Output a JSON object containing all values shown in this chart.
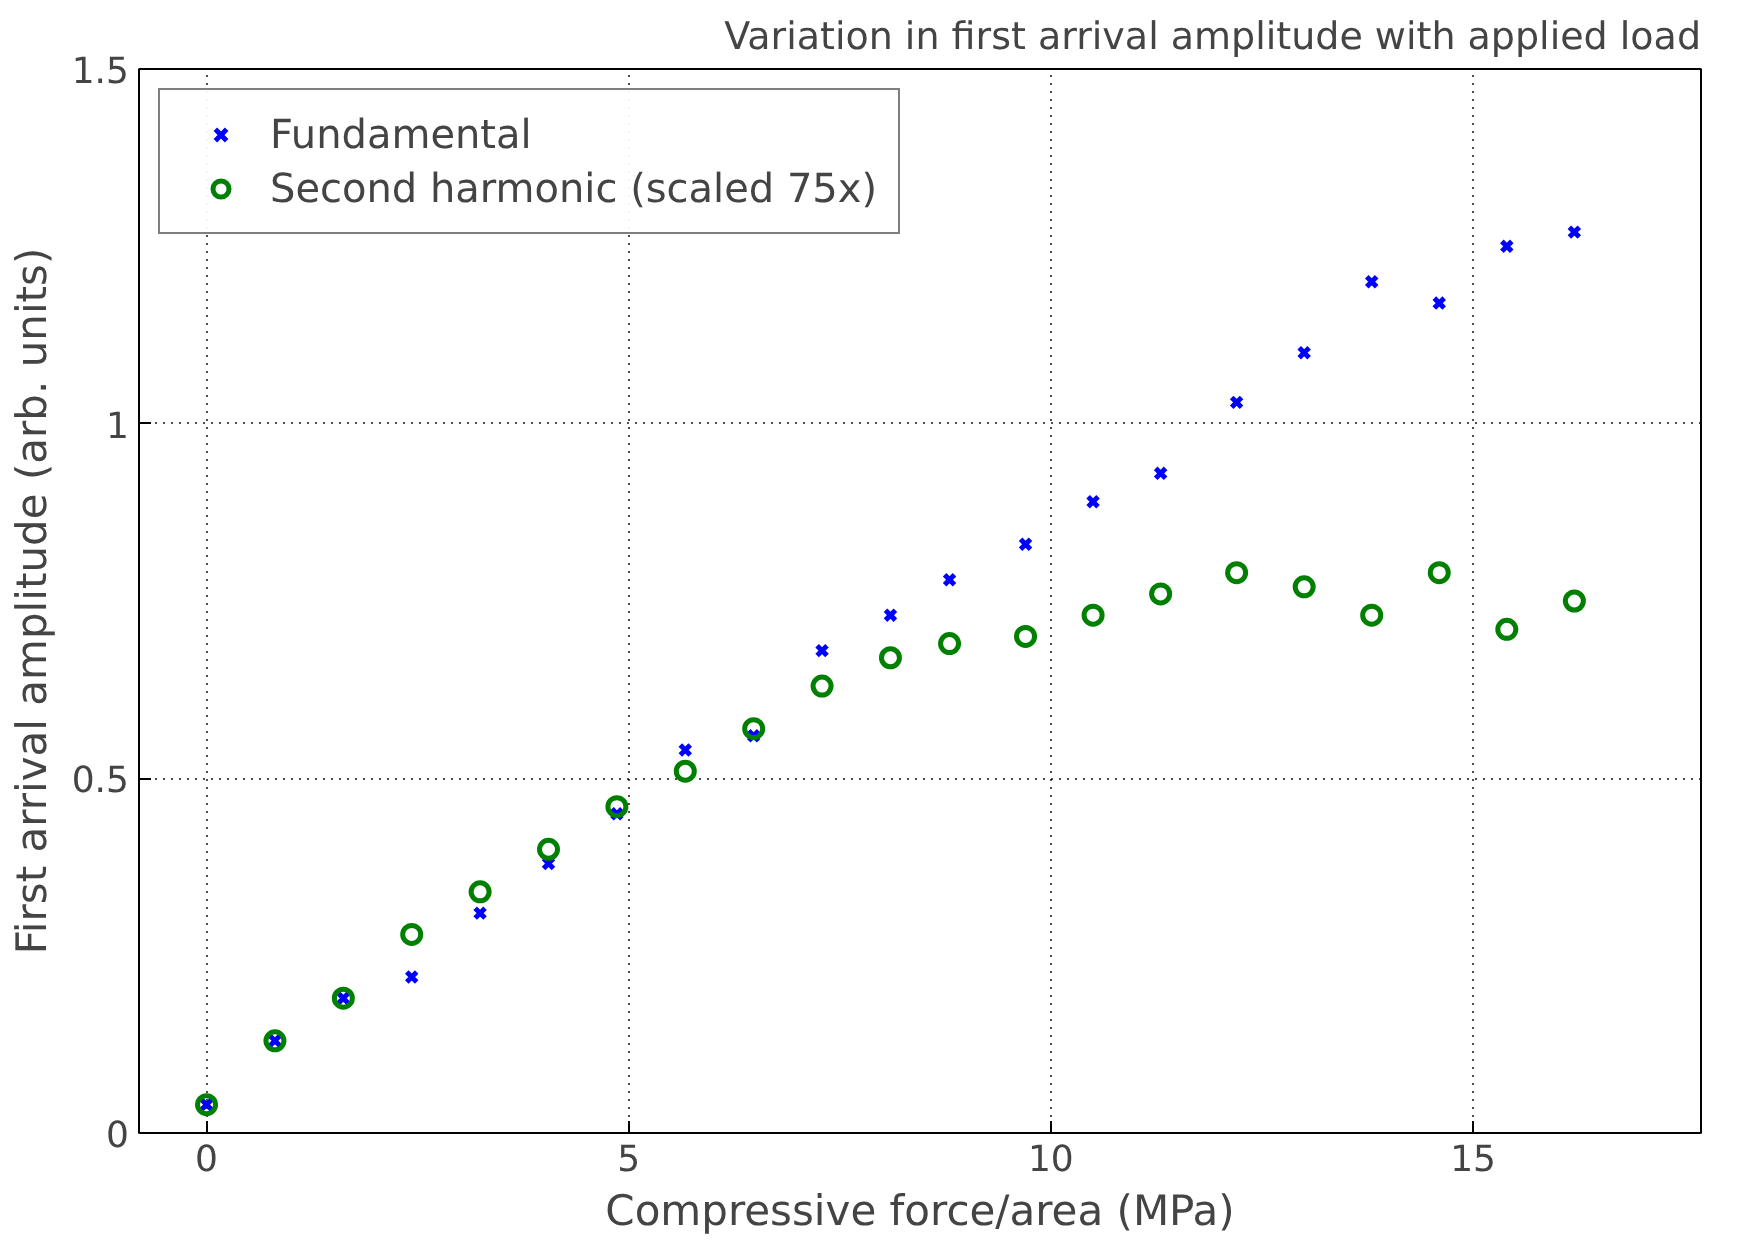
{
  "chart_data": {
    "type": "scatter",
    "title": "Variation in first arrival amplitude with applied load",
    "xlabel": "Compressive force/area (MPa)",
    "ylabel": "First arrival amplitude (arb. units)",
    "x": [
      0,
      0.81,
      1.62,
      2.43,
      3.24,
      4.05,
      4.86,
      5.67,
      6.48,
      7.29,
      8.1,
      8.8,
      9.7,
      10.5,
      11.3,
      12.2,
      13.0,
      13.8,
      14.6,
      15.4,
      16.2
    ],
    "series": [
      {
        "name": "Fundamental",
        "color": "#0000ff",
        "marker": "cross",
        "values": [
          0.04,
          0.13,
          0.19,
          0.22,
          0.31,
          0.38,
          0.45,
          0.54,
          0.56,
          0.68,
          0.73,
          0.78,
          0.83,
          0.89,
          0.93,
          1.03,
          1.1,
          1.2,
          1.17,
          1.25,
          1.27
        ]
      },
      {
        "name": "Second harmonic (scaled 75x)",
        "color": "#008000",
        "marker": "circle",
        "values": [
          0.04,
          0.13,
          0.19,
          0.28,
          0.34,
          0.4,
          0.46,
          0.51,
          0.57,
          0.63,
          0.67,
          0.69,
          0.7,
          0.73,
          0.76,
          0.79,
          0.77,
          0.73,
          0.79,
          0.71,
          0.75
        ]
      }
    ],
    "xlim": [
      -0.8,
      17.7
    ],
    "ylim": [
      0,
      1.5
    ],
    "xticks": [
      0,
      5,
      10,
      15
    ],
    "yticks": [
      0,
      0.5,
      1,
      1.5
    ],
    "grid": true,
    "legend": "top left"
  }
}
